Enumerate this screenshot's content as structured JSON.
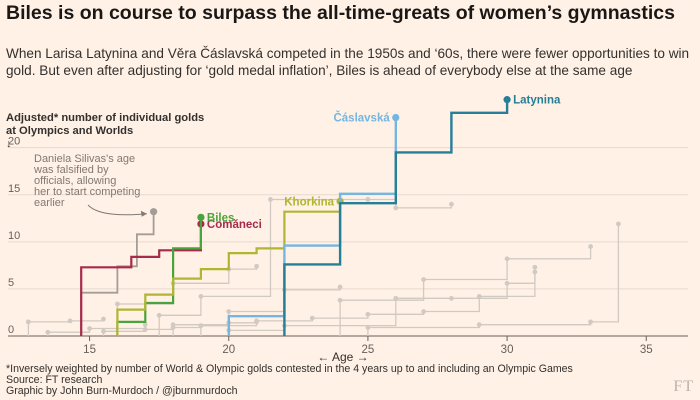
{
  "header": {
    "title": "Biles is on course to surpass the all-time-greats of women’s gymnastics",
    "subtitle": "When Larisa Latynina and Věra Čáslavská competed in the 1950s and ‘60s, there were fewer opportunities to win gold. But even after adjusting for ‘gold medal inflation’, Biles is ahead of everybody else at the same age"
  },
  "y_axis_label": {
    "line1": "Adjusted* number of individual golds",
    "line2": "at Olympics and Worlds",
    "arrow": "↓"
  },
  "footer": {
    "note": "*Inversely weighted by number of World & Olympic golds contested in the 4 years up to and including an Olympic Games",
    "source": "Source: FT research",
    "credit": "Graphic by John Burn-Murdoch / @jburnmurdoch"
  },
  "logo_text": "FT",
  "chart_data": {
    "type": "line",
    "step": true,
    "title": "Adjusted* number of individual golds at Olympics and Worlds",
    "xlabel": "← Age →",
    "ylabel": "Adjusted* number of individual golds at Olympics and Worlds",
    "xlim": [
      12.5,
      36.5
    ],
    "ylim": [
      0,
      24
    ],
    "xticks": [
      15,
      20,
      25,
      30,
      35
    ],
    "yticks": [
      0,
      5,
      10,
      15,
      20
    ],
    "annotation": {
      "text": [
        "Daniela Silivas's age",
        "was falsified by",
        "officials, allowing",
        "her to start competing",
        "earlier"
      ],
      "points_to": {
        "x": 17.2,
        "y": 13.2
      }
    },
    "series": [
      {
        "name": "Latynina",
        "label": "Latynina",
        "color": "#247f99",
        "width": 2.4,
        "label_side": "right",
        "x": [
          22,
          22,
          24,
          24,
          26,
          26,
          28,
          28,
          30,
          30
        ],
        "y": [
          0,
          7.6,
          7.6,
          14.1,
          14.1,
          19.5,
          19.5,
          23.7,
          23.7,
          25.1
        ]
      },
      {
        "name": "Čáslavská",
        "label": "Čáslavská",
        "color": "#75b6e0",
        "width": 2.4,
        "label_side": "left",
        "x": [
          20,
          20,
          22,
          22,
          24,
          24,
          26,
          26
        ],
        "y": [
          0,
          2.1,
          2.1,
          9.6,
          9.6,
          15.1,
          15.1,
          23.2
        ]
      },
      {
        "name": "Khorkina",
        "label": "Khorkina",
        "color": "#b1b532",
        "width": 2.2,
        "label_side": "left",
        "x": [
          16,
          16,
          17,
          17,
          18,
          18,
          19,
          19,
          20,
          20,
          21,
          21,
          22,
          22,
          24,
          24
        ],
        "y": [
          0,
          2.8,
          2.8,
          4.4,
          4.4,
          6.1,
          6.1,
          7.1,
          7.1,
          8.8,
          8.8,
          9.3,
          9.3,
          13.2,
          13.2,
          14.3
        ]
      },
      {
        "name": "Biles",
        "label": "Biles",
        "color": "#4aa33d",
        "width": 2.2,
        "label_side": "right",
        "x": [
          16,
          16,
          17,
          17,
          18,
          18,
          19,
          19
        ],
        "y": [
          0,
          1.5,
          1.5,
          3.5,
          3.5,
          9.3,
          9.3,
          12.6
        ]
      },
      {
        "name": "Comăneci",
        "label": "Comăneci",
        "color": "#a62b4a",
        "width": 2.2,
        "label_side": "right",
        "x": [
          14.7,
          14.7,
          16.5,
          16.5,
          17.5,
          17.5,
          19,
          19
        ],
        "y": [
          0,
          7.3,
          7.3,
          8.4,
          8.4,
          9.1,
          9.1,
          11.9
        ]
      },
      {
        "name": "Silivas",
        "label": "",
        "color": "#a39d98",
        "width": 1.8,
        "label_side": "none",
        "x": [
          14.7,
          14.7,
          16,
          16,
          16.7,
          16.7,
          17.3,
          17.3
        ],
        "y": [
          0,
          4.6,
          4.6,
          7.4,
          7.4,
          10.8,
          10.8,
          13.2
        ]
      },
      {
        "name": "Other gymnast 1",
        "label": "",
        "color": "#d1cac3",
        "width": 1.3,
        "label_side": "none",
        "x": [
          12.8,
          12.8,
          14.3,
          14.3,
          15.5,
          15.5
        ],
        "y": [
          0,
          1.5,
          1.5,
          1.6,
          1.6,
          1.8
        ]
      },
      {
        "name": "Other gymnast 2",
        "label": "",
        "color": "#d1cac3",
        "width": 1.3,
        "label_side": "none",
        "x": [
          16,
          16,
          18,
          18,
          20,
          20,
          21,
          21
        ],
        "y": [
          0,
          3.4,
          3.4,
          5.6,
          5.6,
          7.1,
          7.1,
          7.4
        ]
      },
      {
        "name": "Other gymnast 3",
        "label": "",
        "color": "#d1cac3",
        "width": 1.3,
        "label_side": "none",
        "x": [
          17.5,
          17.5,
          19,
          19,
          21.5,
          21.5,
          25,
          25,
          26,
          26,
          28,
          28
        ],
        "y": [
          0,
          2.2,
          2.2,
          4.2,
          4.2,
          14.5,
          14.5,
          14.5,
          14.5,
          13.6,
          13.6,
          14
        ]
      },
      {
        "name": "Other gymnast 4",
        "label": "",
        "color": "#d1cac3",
        "width": 1.3,
        "label_side": "none",
        "x": [
          18,
          18,
          20,
          20,
          22,
          22,
          24,
          24
        ],
        "y": [
          0,
          1.2,
          1.2,
          2.6,
          2.6,
          4.9,
          4.9,
          5.2
        ]
      },
      {
        "name": "Other gymnast 5",
        "label": "",
        "color": "#d1cac3",
        "width": 1.3,
        "label_side": "none",
        "x": [
          19,
          19,
          21,
          21,
          23,
          23,
          25,
          25,
          27,
          27,
          29,
          29,
          31,
          31
        ],
        "y": [
          0,
          1.1,
          1.1,
          1.6,
          1.6,
          1.9,
          1.9,
          2.3,
          2.3,
          2.6,
          2.6,
          4.2,
          4.2,
          6.8
        ]
      },
      {
        "name": "Other gymnast 6",
        "label": "",
        "color": "#d1cac3",
        "width": 1.3,
        "label_side": "none",
        "x": [
          20,
          20,
          22,
          22,
          26,
          26,
          28,
          28,
          30,
          30,
          31,
          31
        ],
        "y": [
          0,
          0.6,
          0.6,
          1.1,
          1.1,
          4,
          4,
          4,
          4,
          5.6,
          5.6,
          7.3
        ]
      },
      {
        "name": "Other gymnast 7",
        "label": "",
        "color": "#d1cac3",
        "width": 1.3,
        "label_side": "none",
        "x": [
          24,
          24,
          27,
          27,
          30,
          30,
          33,
          33
        ],
        "y": [
          0,
          3.8,
          3.8,
          6,
          6,
          8.2,
          8.2,
          9.5
        ]
      },
      {
        "name": "Other gymnast 8",
        "label": "",
        "color": "#d1cac3",
        "width": 1.3,
        "label_side": "none",
        "x": [
          25,
          25,
          29,
          29,
          33,
          33,
          34,
          34
        ],
        "y": [
          0,
          0.9,
          0.9,
          1.2,
          1.2,
          1.5,
          1.5,
          11.9
        ]
      },
      {
        "name": "Other gymnast 9",
        "label": "",
        "color": "#d1cac3",
        "width": 1.3,
        "label_side": "none",
        "x": [
          15.5,
          15.5,
          17,
          17,
          18,
          18,
          19,
          19,
          20,
          20,
          21,
          21
        ],
        "y": [
          0,
          0.5,
          0.5,
          0.7,
          0.7,
          0.9,
          0.9,
          1.1,
          1.1,
          1.4,
          1.4,
          1.5
        ]
      },
      {
        "name": "Other gymnast 10",
        "label": "",
        "color": "#d1cac3",
        "width": 1.3,
        "label_side": "none",
        "x": [
          13.5,
          13.5,
          15,
          15,
          17,
          17
        ],
        "y": [
          0,
          0.4,
          0.4,
          0.8,
          0.8,
          1.2
        ]
      }
    ]
  }
}
